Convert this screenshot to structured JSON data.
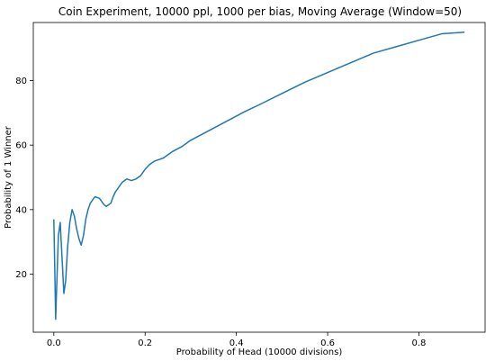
{
  "chart_data": {
    "type": "line",
    "title": "Coin Experiment, 10000 ppl, 1000 per bias, Moving Average (Window=50)",
    "xlabel": "Probability of Head (10000 divisions)",
    "ylabel": "Probability of 1 Winner",
    "xlim": [
      -0.045,
      0.945
    ],
    "ylim": [
      2,
      98
    ],
    "x_ticks": [
      0.0,
      0.2,
      0.4,
      0.6,
      0.8
    ],
    "x_tick_labels": [
      "0.0",
      "0.2",
      "0.4",
      "0.6",
      "0.8"
    ],
    "y_ticks": [
      20,
      40,
      60,
      80
    ],
    "y_tick_labels": [
      "20",
      "40",
      "60",
      "80"
    ],
    "grid": false,
    "series": [
      {
        "color": "#1f77b4",
        "x": [
          0.0,
          0.002,
          0.004,
          0.006,
          0.01,
          0.014,
          0.018,
          0.022,
          0.026,
          0.03,
          0.035,
          0.04,
          0.045,
          0.05,
          0.055,
          0.06,
          0.065,
          0.07,
          0.075,
          0.08,
          0.09,
          0.1,
          0.11,
          0.115,
          0.12,
          0.125,
          0.13,
          0.135,
          0.14,
          0.145,
          0.15,
          0.16,
          0.17,
          0.18,
          0.19,
          0.2,
          0.21,
          0.22,
          0.23,
          0.24,
          0.26,
          0.28,
          0.3,
          0.32,
          0.34,
          0.36,
          0.38,
          0.4,
          0.42,
          0.45,
          0.5,
          0.55,
          0.6,
          0.65,
          0.7,
          0.75,
          0.8,
          0.85,
          0.9
        ],
        "y": [
          37,
          22,
          6,
          15,
          32,
          36,
          25,
          14,
          18,
          28,
          36,
          40,
          38,
          34,
          31,
          29,
          32,
          37,
          40,
          42,
          44,
          43.5,
          41.5,
          41,
          41.5,
          42,
          44,
          45.5,
          46.5,
          47.5,
          48.5,
          49.5,
          49,
          49.5,
          50.5,
          52.5,
          54,
          55,
          55.5,
          56,
          58,
          59.5,
          61.5,
          63,
          64.5,
          66,
          67.5,
          69,
          70.5,
          72.5,
          76,
          79.5,
          82.5,
          85.5,
          88.5,
          90.5,
          92.5,
          94.5,
          95
        ]
      }
    ]
  }
}
